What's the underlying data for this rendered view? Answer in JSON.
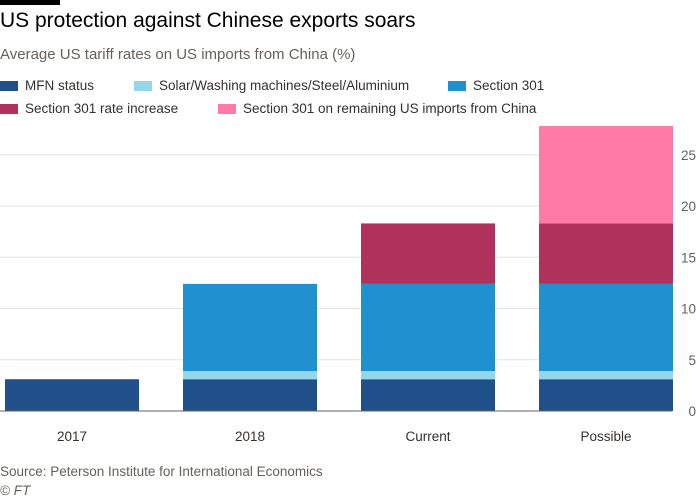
{
  "header": {
    "title": "US protection against Chinese exports soars",
    "subtitle": "Average US tariff rates on US imports from China (%)"
  },
  "footer": {
    "source": "Source: Peterson Institute for International Economics",
    "credit": "© FT"
  },
  "chart_data": {
    "type": "bar",
    "stacked": true,
    "categories": [
      "2017",
      "2018",
      "Current",
      "Possible"
    ],
    "series": [
      {
        "name": "MFN status",
        "color": "#1f5089",
        "values": [
          3.1,
          3.1,
          3.1,
          3.1
        ]
      },
      {
        "name": "Solar/Washing machines/Steel/Aluminium",
        "color": "#96d6ea",
        "values": [
          0,
          0.8,
          0.8,
          0.8
        ]
      },
      {
        "name": "Section 301",
        "color": "#1f91d0",
        "values": [
          0,
          8.5,
          8.5,
          8.5
        ]
      },
      {
        "name": "Section 301 rate increase",
        "color": "#b0315b",
        "values": [
          0,
          0,
          5.9,
          5.9
        ]
      },
      {
        "name": "Section 301 on remaining US imports from China",
        "color": "#ff7aa6",
        "values": [
          0,
          0,
          0,
          9.5
        ]
      }
    ],
    "yticks": [
      0,
      5,
      10,
      15,
      20,
      25
    ],
    "ylim": [
      0,
      28
    ],
    "y_axis_side": "right",
    "grid": true,
    "legend_position": "top"
  }
}
